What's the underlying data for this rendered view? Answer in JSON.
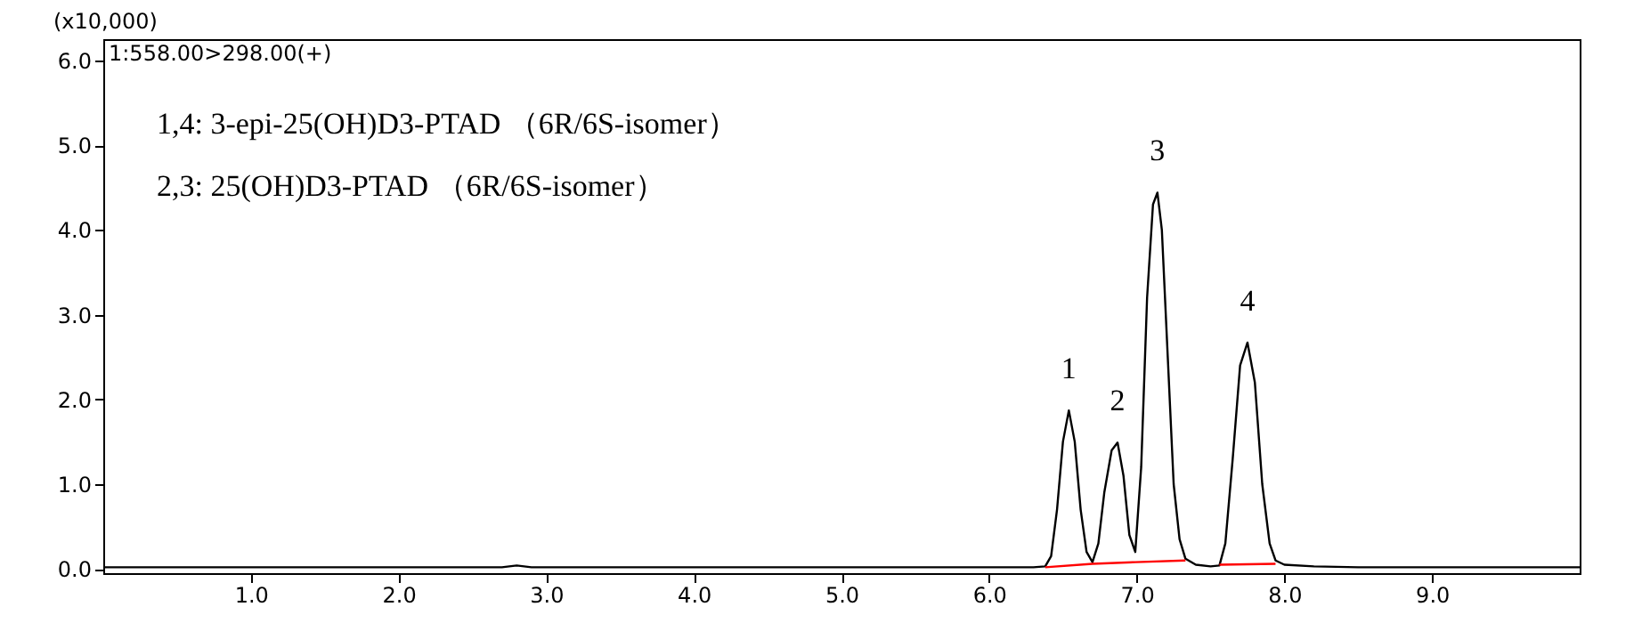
{
  "chart_data": {
    "type": "line",
    "ylabel": "(x10,000)",
    "xlim": [
      0,
      10
    ],
    "ylim": [
      -0.05,
      6.25
    ],
    "xticks": [
      {
        "value": 1,
        "label": "1.0"
      },
      {
        "value": 2,
        "label": "2.0"
      },
      {
        "value": 3,
        "label": "3.0"
      },
      {
        "value": 4,
        "label": "4.0"
      },
      {
        "value": 5,
        "label": "5.0"
      },
      {
        "value": 6,
        "label": "6.0"
      },
      {
        "value": 7,
        "label": "7.0"
      },
      {
        "value": 8,
        "label": "8.0"
      },
      {
        "value": 9,
        "label": "9.0"
      }
    ],
    "yticks": [
      {
        "value": 0,
        "label": "0.0"
      },
      {
        "value": 1,
        "label": "1.0"
      },
      {
        "value": 2,
        "label": "2.0"
      },
      {
        "value": 3,
        "label": "3.0"
      },
      {
        "value": 4,
        "label": "4.0"
      },
      {
        "value": 5,
        "label": "5.0"
      },
      {
        "value": 6,
        "label": "6.0"
      }
    ],
    "grid": false,
    "series": [
      {
        "color": "#000000",
        "x": [
          0,
          1.0,
          2.0,
          2.7,
          2.8,
          2.9,
          4.0,
          5.0,
          6.0,
          6.3,
          6.38,
          6.42,
          6.46,
          6.5,
          6.54,
          6.58,
          6.62,
          6.66,
          6.7,
          6.74,
          6.78,
          6.83,
          6.87,
          6.91,
          6.95,
          6.99,
          7.03,
          7.07,
          7.11,
          7.14,
          7.17,
          7.21,
          7.25,
          7.29,
          7.33,
          7.4,
          7.5,
          7.56,
          7.6,
          7.65,
          7.7,
          7.75,
          7.8,
          7.85,
          7.9,
          7.94,
          8.0,
          8.2,
          8.5,
          9.0,
          10
        ],
        "values": [
          0.02,
          0.02,
          0.02,
          0.02,
          0.04,
          0.02,
          0.02,
          0.02,
          0.02,
          0.02,
          0.03,
          0.15,
          0.7,
          1.5,
          1.87,
          1.5,
          0.7,
          0.2,
          0.08,
          0.3,
          0.9,
          1.4,
          1.49,
          1.1,
          0.4,
          0.2,
          1.2,
          3.2,
          4.3,
          4.44,
          4.0,
          2.5,
          1.0,
          0.35,
          0.12,
          0.05,
          0.03,
          0.04,
          0.3,
          1.3,
          2.4,
          2.67,
          2.2,
          1.0,
          0.3,
          0.1,
          0.05,
          0.03,
          0.02,
          0.02,
          0.02
        ]
      },
      {
        "color": "#ff0000",
        "x": [
          6.38,
          6.7,
          6.99,
          7.33,
          7.45,
          7.56,
          7.94
        ],
        "values": [
          0.02,
          0.06,
          0.08,
          0.1,
          null,
          0.05,
          0.06
        ]
      }
    ],
    "annotations": [
      "1:558.00>298.00(+)",
      "1,4:  3-epi-25(OH)D3-PTAD  （6R/6S-isomer）",
      "2,3:  25(OH)D3-PTAD  （6R/6S-isomer）",
      {
        "text": "1",
        "x": 6.54,
        "y": 1.87
      },
      {
        "text": "2",
        "x": 6.87,
        "y": 1.49
      },
      {
        "text": "3",
        "x": 7.14,
        "y": 4.44
      },
      {
        "text": "4",
        "x": 7.75,
        "y": 2.67
      }
    ]
  }
}
